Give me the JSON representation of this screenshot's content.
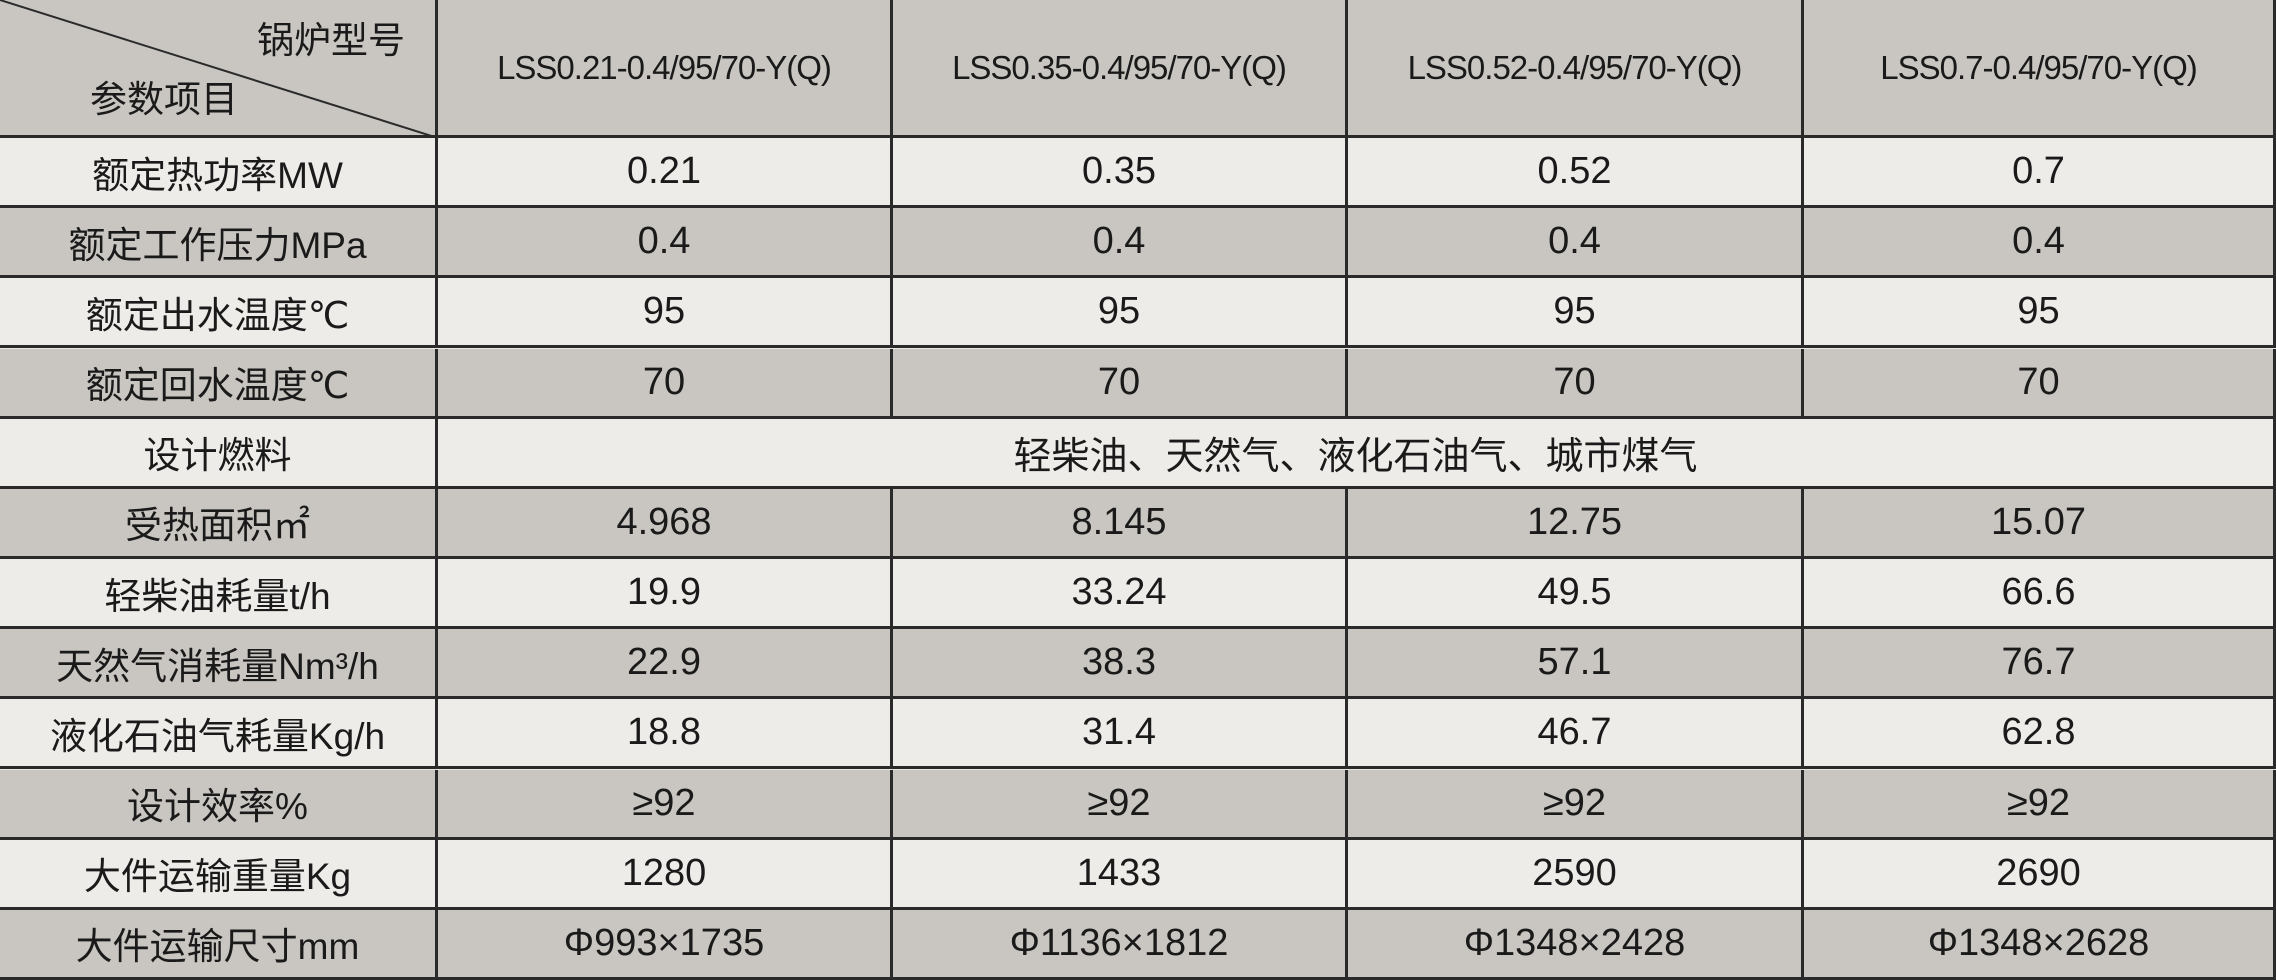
{
  "table": {
    "header": {
      "corner_top": "锅炉型号",
      "corner_bottom": "参数项目",
      "models": [
        "LSS0.21-0.4/95/70-Y(Q)",
        "LSS0.35-0.4/95/70-Y(Q)",
        "LSS0.52-0.4/95/70-Y(Q)",
        "LSS0.7-0.4/95/70-Y(Q)"
      ]
    },
    "rows": [
      {
        "label": "额定热功率MW",
        "cells": [
          "0.21",
          "0.35",
          "0.52",
          "0.7"
        ]
      },
      {
        "label": "额定工作压力MPa",
        "cells": [
          "0.4",
          "0.4",
          "0.4",
          "0.4"
        ]
      },
      {
        "label": "额定出水温度℃",
        "cells": [
          "95",
          "95",
          "95",
          "95"
        ]
      },
      {
        "label": "额定回水温度℃",
        "cells": [
          "70",
          "70",
          "70",
          "70"
        ]
      },
      {
        "label": "设计燃料",
        "span": "轻柴油、天然气、液化石油气、城市煤气"
      },
      {
        "label": "受热面积㎡",
        "cells": [
          "4.968",
          "8.145",
          "12.75",
          "15.07"
        ]
      },
      {
        "label": "轻柴油耗量t/h",
        "cells": [
          "19.9",
          "33.24",
          "49.5",
          "66.6"
        ]
      },
      {
        "label": "天然气消耗量Nm³/h",
        "cells": [
          "22.9",
          "38.3",
          "57.1",
          "76.7"
        ]
      },
      {
        "label": "液化石油气耗量Kg/h",
        "cells": [
          "18.8",
          "31.4",
          "46.7",
          "62.8"
        ]
      },
      {
        "label": "设计效率%",
        "cells": [
          "≥92",
          "≥92",
          "≥92",
          "≥92"
        ]
      },
      {
        "label": "大件运输重量Kg",
        "cells": [
          "1280",
          "1433",
          "2590",
          "2690"
        ]
      },
      {
        "label": "大件运输尺寸mm",
        "cells": [
          "Φ993×1735",
          "Φ1136×1812",
          "Φ1348×2428",
          "Φ1348×2628"
        ]
      }
    ]
  }
}
